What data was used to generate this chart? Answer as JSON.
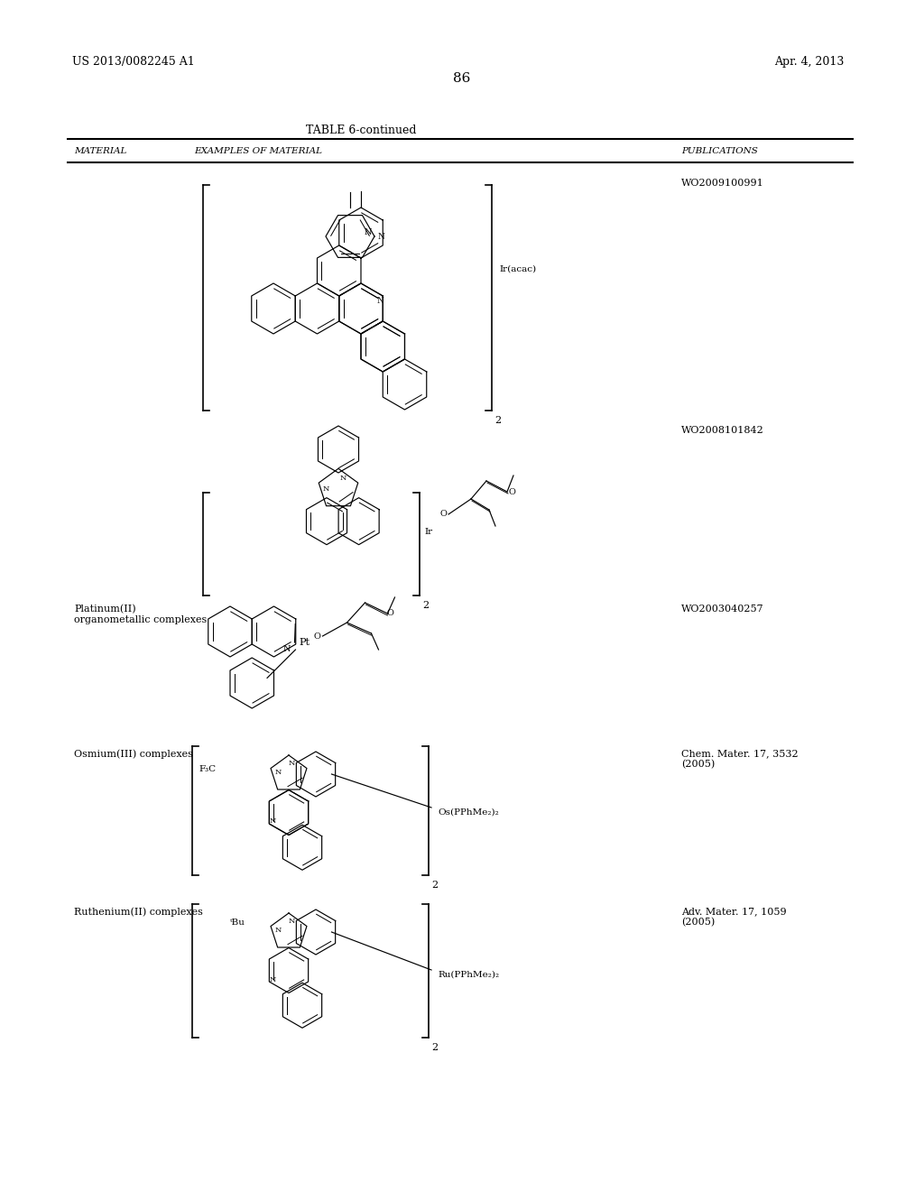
{
  "page_number": "86",
  "patent_number": "US 2013/0082245 A1",
  "patent_date": "Apr. 4, 2013",
  "table_title": "TABLE 6-continued",
  "col1": "MATERIAL",
  "col2": "EXAMPLES OF MATERIAL",
  "col3": "PUBLICATIONS",
  "row1_pub": "WO2009100991",
  "row2_pub": "WO2008101842",
  "row3_mat": "Platinum(II)\norganometallic complexes",
  "row3_pub": "WO2003040257",
  "row4_mat": "Osmium(III) complexes",
  "row4_pub": "Chem. Mater. 17, 3532\n(2005)",
  "row5_mat": "Ruthenium(II) complexes",
  "row5_pub": "Adv. Mater. 17, 1059\n(2005)",
  "bg": "#ffffff",
  "fg": "#000000"
}
